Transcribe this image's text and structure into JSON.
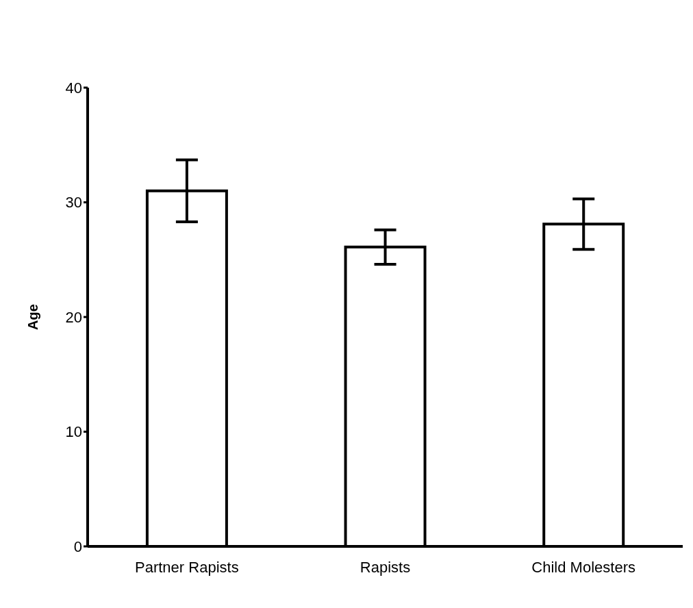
{
  "chart_data": {
    "type": "bar",
    "ylabel": "Age",
    "categories": [
      "Partner Rapists",
      "Rapists",
      "Child Molesters"
    ],
    "values": [
      31,
      26.1,
      28.1
    ],
    "errors": [
      2.7,
      1.5,
      2.2
    ],
    "color": "#ffffff",
    "ylim": [
      0,
      40
    ],
    "yticks": [
      0,
      10,
      20,
      30,
      40
    ],
    "grid": false,
    "legend": false
  }
}
